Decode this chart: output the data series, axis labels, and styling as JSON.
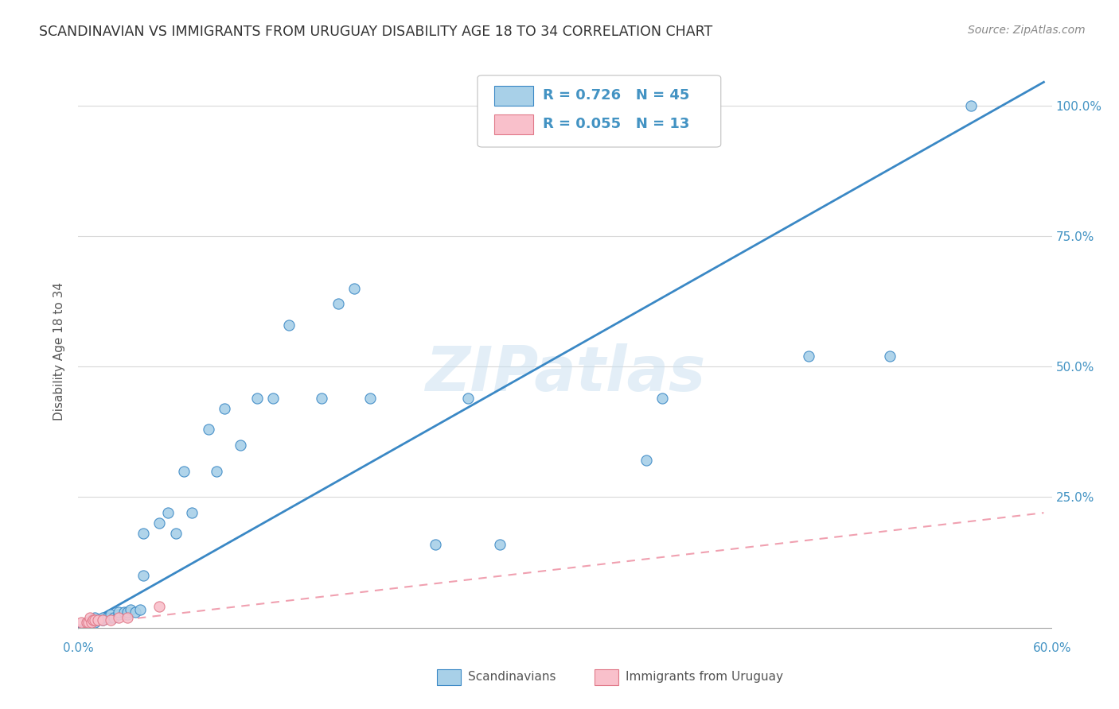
{
  "title": "SCANDINAVIAN VS IMMIGRANTS FROM URUGUAY DISABILITY AGE 18 TO 34 CORRELATION CHART",
  "source": "Source: ZipAtlas.com",
  "ylabel": "Disability Age 18 to 34",
  "xlim": [
    0.0,
    0.6
  ],
  "ylim": [
    -0.02,
    1.08
  ],
  "xticks": [
    0.0,
    0.1,
    0.2,
    0.3,
    0.4,
    0.5,
    0.6
  ],
  "xticklabels": [
    "0.0%",
    "",
    "",
    "",
    "",
    "",
    "60.0%"
  ],
  "yticks": [
    0.0,
    0.25,
    0.5,
    0.75,
    1.0
  ],
  "yticklabels": [
    "",
    "25.0%",
    "50.0%",
    "75.0%",
    "100.0%"
  ],
  "legend_r1": "R = 0.726",
  "legend_n1": "N = 45",
  "legend_r2": "R = 0.055",
  "legend_n2": "N = 13",
  "color_scandinavian": "#a8d0e8",
  "color_uruguay": "#f9c0cb",
  "color_line_scand": "#3a88c5",
  "color_line_urug": "#f0a0b0",
  "watermark": "ZIPatlas",
  "scandinavians_x": [
    0.005,
    0.008,
    0.01,
    0.01,
    0.012,
    0.015,
    0.015,
    0.018,
    0.02,
    0.02,
    0.022,
    0.025,
    0.025,
    0.028,
    0.03,
    0.03,
    0.032,
    0.035,
    0.038,
    0.04,
    0.04,
    0.05,
    0.055,
    0.06,
    0.065,
    0.07,
    0.08,
    0.085,
    0.09,
    0.1,
    0.11,
    0.12,
    0.13,
    0.15,
    0.16,
    0.17,
    0.18,
    0.22,
    0.24,
    0.26,
    0.35,
    0.36,
    0.45,
    0.5,
    0.55
  ],
  "scandinavians_y": [
    0.01,
    0.015,
    0.01,
    0.02,
    0.015,
    0.015,
    0.02,
    0.02,
    0.02,
    0.025,
    0.02,
    0.025,
    0.03,
    0.03,
    0.025,
    0.03,
    0.035,
    0.03,
    0.035,
    0.1,
    0.18,
    0.2,
    0.22,
    0.18,
    0.3,
    0.22,
    0.38,
    0.3,
    0.42,
    0.35,
    0.44,
    0.44,
    0.58,
    0.44,
    0.62,
    0.65,
    0.44,
    0.16,
    0.44,
    0.16,
    0.32,
    0.44,
    0.52,
    0.52,
    1.0
  ],
  "uruguay_x": [
    0.002,
    0.005,
    0.006,
    0.007,
    0.008,
    0.009,
    0.01,
    0.012,
    0.015,
    0.02,
    0.025,
    0.03,
    0.05
  ],
  "uruguay_y": [
    0.01,
    0.01,
    0.01,
    0.02,
    0.01,
    0.015,
    0.015,
    0.015,
    0.015,
    0.015,
    0.02,
    0.02,
    0.04
  ],
  "scand_line_x": [
    0.0,
    0.595
  ],
  "scand_line_y": [
    0.0,
    1.045
  ],
  "urug_line_x": [
    0.0,
    0.595
  ],
  "urug_line_y": [
    0.005,
    0.22
  ],
  "bg_color": "#ffffff",
  "grid_color": "#d8d8d8"
}
